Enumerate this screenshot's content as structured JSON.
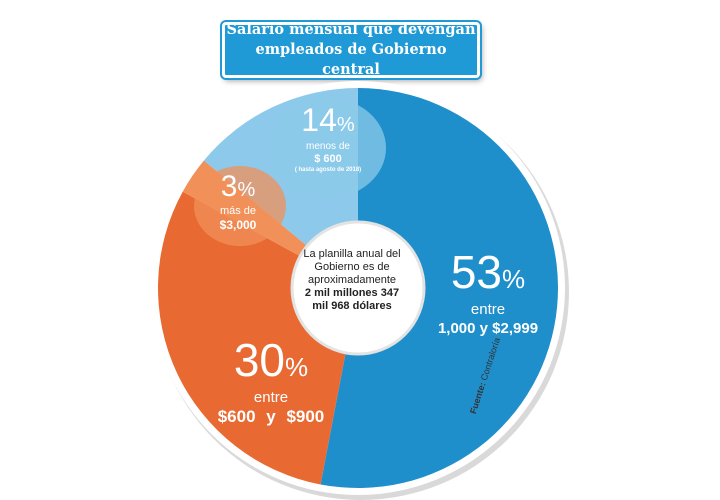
{
  "title": {
    "line1": "Salario mensual que devengan",
    "line2": "empleados de Gobierno central"
  },
  "center": {
    "line1": "La planilla anual del",
    "line2": "Gobierno es de",
    "line3": "aproximadamente",
    "line4": "2 mil millones 347",
    "line5": "mil 968 dólares"
  },
  "source": {
    "label": "Fuente:",
    "value": "Contraloría"
  },
  "colors": {
    "blue": "#1f8fcc",
    "light_blue": "#8cc9ea",
    "orange": "#e86a32",
    "light_orange": "#f2905a",
    "white": "#ffffff"
  },
  "chart_data": {
    "type": "pie",
    "variant": "donut",
    "slices": [
      {
        "value": 53,
        "pct_text": "53",
        "line1": "entre",
        "line2": "1,000 y $2,999",
        "color": "#1f8fcc"
      },
      {
        "value": 30,
        "pct_text": "30",
        "line1": "entre",
        "line2": "$600 y $900",
        "color": "#e86a32"
      },
      {
        "value": 3,
        "pct_text": "3",
        "line1": "más de",
        "line2": "$3,000",
        "color": "#f2905a"
      },
      {
        "value": 14,
        "pct_text": "14",
        "line1": "menos de",
        "line2": "$ 600",
        "line3": "( hasta agosto de 2018)",
        "color": "#8cc9ea"
      }
    ]
  }
}
